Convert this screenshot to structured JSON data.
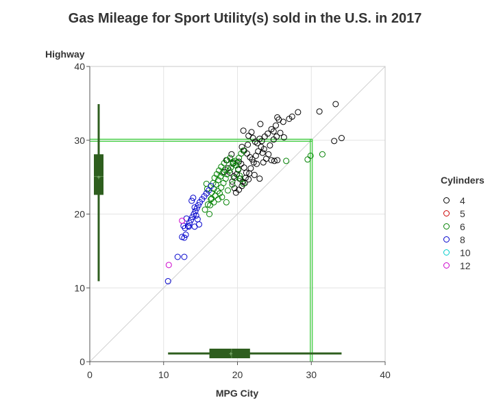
{
  "chart_data": {
    "type": "scatter",
    "title": "Gas Mileage for Sport Utility(s) sold in the U.S. in 2017",
    "xlabel": "MPG City",
    "ylabel": "Highway",
    "xlim": [
      0,
      40
    ],
    "ylim": [
      0,
      40
    ],
    "xticks": [
      "0",
      "10",
      "20",
      "30",
      "40"
    ],
    "yticks": [
      "0",
      "10",
      "20",
      "30",
      "40"
    ],
    "grid": true,
    "reference_line": "y = x",
    "average_lines": {
      "x": 30,
      "y": 30,
      "color": "#33cc33"
    },
    "legend": {
      "title": "Cylinders",
      "placement": "right"
    },
    "series": [
      {
        "name": "4",
        "color": "#000000",
        "points": [
          [
            20.8,
            31.3
          ],
          [
            21.5,
            30.6
          ],
          [
            22.1,
            30.3
          ],
          [
            22.4,
            29.8
          ],
          [
            23.0,
            30.2
          ],
          [
            23.3,
            29.9
          ],
          [
            23.7,
            30.5
          ],
          [
            24.1,
            30.9
          ],
          [
            24.6,
            31.5
          ],
          [
            25.2,
            32.0
          ],
          [
            25.6,
            32.8
          ],
          [
            26.2,
            32.5
          ],
          [
            27.0,
            32.9
          ],
          [
            27.4,
            33.2
          ],
          [
            28.2,
            33.8
          ],
          [
            31.1,
            33.9
          ],
          [
            33.3,
            34.9
          ],
          [
            34.1,
            30.3
          ],
          [
            33.1,
            29.9
          ],
          [
            25.4,
            33.1
          ],
          [
            24.9,
            31.2
          ],
          [
            23.1,
            32.2
          ],
          [
            21.9,
            31.1
          ],
          [
            20.6,
            29.1
          ],
          [
            20.9,
            28.6
          ],
          [
            21.3,
            28.2
          ],
          [
            21.7,
            27.7
          ],
          [
            22.0,
            27.4
          ],
          [
            22.5,
            27.9
          ],
          [
            22.8,
            28.5
          ],
          [
            23.2,
            29.1
          ],
          [
            23.6,
            28.8
          ],
          [
            24.2,
            28.1
          ],
          [
            24.6,
            27.3
          ],
          [
            25.0,
            27.2
          ],
          [
            25.4,
            27.3
          ],
          [
            21.8,
            26.2
          ],
          [
            21.6,
            25.5
          ],
          [
            21.1,
            24.9
          ],
          [
            20.7,
            24.4
          ],
          [
            20.3,
            24.8
          ],
          [
            19.9,
            25.4
          ],
          [
            19.5,
            25.1
          ],
          [
            19.3,
            24.4
          ],
          [
            19.6,
            23.5
          ],
          [
            19.8,
            22.9
          ],
          [
            20.2,
            23.3
          ],
          [
            20.6,
            23.8
          ],
          [
            21.0,
            24.2
          ],
          [
            21.5,
            24.7
          ],
          [
            21.2,
            25.6
          ],
          [
            20.9,
            26.3
          ],
          [
            20.5,
            26.8
          ],
          [
            20.2,
            27.1
          ],
          [
            22.3,
            25.3
          ],
          [
            22.6,
            26.8
          ],
          [
            23.0,
            24.8
          ],
          [
            23.5,
            27.0
          ],
          [
            23.9,
            27.5
          ],
          [
            24.4,
            29.3
          ],
          [
            24.9,
            30.1
          ],
          [
            25.3,
            30.5
          ],
          [
            25.8,
            31.0
          ],
          [
            26.3,
            30.4
          ],
          [
            19.4,
            26.9
          ],
          [
            19.0,
            25.6
          ],
          [
            18.7,
            26.2
          ],
          [
            18.5,
            27.3
          ],
          [
            18.2,
            25.7
          ],
          [
            19.2,
            28.1
          ],
          [
            22.7,
            29.6
          ],
          [
            23.4,
            28.3
          ],
          [
            21.4,
            29.4
          ],
          [
            20.1,
            26.0
          ],
          [
            22.2,
            27.0
          ]
        ]
      },
      {
        "name": "5",
        "color": "#cc0000",
        "points": []
      },
      {
        "name": "6",
        "color": "#008000",
        "points": [
          [
            15.6,
            20.6
          ],
          [
            16.0,
            21.3
          ],
          [
            16.2,
            20.0
          ],
          [
            16.5,
            22.1
          ],
          [
            16.8,
            21.6
          ],
          [
            17.0,
            22.5
          ],
          [
            17.3,
            23.1
          ],
          [
            17.6,
            22.8
          ],
          [
            17.8,
            23.6
          ],
          [
            18.1,
            24.2
          ],
          [
            18.4,
            24.8
          ],
          [
            18.6,
            25.4
          ],
          [
            18.9,
            25.9
          ],
          [
            19.1,
            26.3
          ],
          [
            19.4,
            26.8
          ],
          [
            19.7,
            27.2
          ],
          [
            20.0,
            27.0
          ],
          [
            20.2,
            27.6
          ],
          [
            20.5,
            28.2
          ],
          [
            20.8,
            28.6
          ],
          [
            18.3,
            26.0
          ],
          [
            18.0,
            25.6
          ],
          [
            17.7,
            25.1
          ],
          [
            17.4,
            24.6
          ],
          [
            17.1,
            24.0
          ],
          [
            16.8,
            23.4
          ],
          [
            16.5,
            22.9
          ],
          [
            16.7,
            24.2
          ],
          [
            16.9,
            24.9
          ],
          [
            17.2,
            25.4
          ],
          [
            17.5,
            25.9
          ],
          [
            17.8,
            26.4
          ],
          [
            18.2,
            26.9
          ],
          [
            18.6,
            27.3
          ],
          [
            19.0,
            27.6
          ],
          [
            19.4,
            27.1
          ],
          [
            19.8,
            26.6
          ],
          [
            20.1,
            26.1
          ],
          [
            20.4,
            24.8
          ],
          [
            20.8,
            24.1
          ],
          [
            16.4,
            22.0
          ],
          [
            17.9,
            22.3
          ],
          [
            18.7,
            23.2
          ],
          [
            19.3,
            24.0
          ],
          [
            15.8,
            24.1
          ],
          [
            15.9,
            23.4
          ],
          [
            16.3,
            21.2
          ],
          [
            26.6,
            27.2
          ],
          [
            29.5,
            27.4
          ],
          [
            29.9,
            27.9
          ],
          [
            31.5,
            28.1
          ],
          [
            17.4,
            22.0
          ],
          [
            18.5,
            21.6
          ],
          [
            19.6,
            24.9
          ],
          [
            20.3,
            25.2
          ]
        ]
      },
      {
        "name": "8",
        "color": "#0000cc",
        "points": [
          [
            10.6,
            10.9
          ],
          [
            11.9,
            14.2
          ],
          [
            12.8,
            14.2
          ],
          [
            12.5,
            16.9
          ],
          [
            12.8,
            16.8
          ],
          [
            13.0,
            17.2
          ],
          [
            12.9,
            18.1
          ],
          [
            13.3,
            18.4
          ],
          [
            13.5,
            18.8
          ],
          [
            13.7,
            19.2
          ],
          [
            13.9,
            19.6
          ],
          [
            14.1,
            20.0
          ],
          [
            14.3,
            20.4
          ],
          [
            14.5,
            20.8
          ],
          [
            14.7,
            21.2
          ],
          [
            14.9,
            21.6
          ],
          [
            15.2,
            22.0
          ],
          [
            15.5,
            22.4
          ],
          [
            15.8,
            22.8
          ],
          [
            16.1,
            23.2
          ],
          [
            16.4,
            23.8
          ],
          [
            13.8,
            21.8
          ],
          [
            14.0,
            22.2
          ],
          [
            14.2,
            20.9
          ],
          [
            14.4,
            19.8
          ],
          [
            14.6,
            19.3
          ],
          [
            14.8,
            18.6
          ],
          [
            13.4,
            18.3
          ],
          [
            13.1,
            19.4
          ],
          [
            12.7,
            18.4
          ],
          [
            14.2,
            18.3
          ]
        ]
      },
      {
        "name": "10",
        "color": "#00cccc",
        "points": []
      },
      {
        "name": "12",
        "color": "#cc00cc",
        "points": [
          [
            10.7,
            13.1
          ],
          [
            12.5,
            19.1
          ]
        ]
      }
    ],
    "box_x": {
      "min": 10.6,
      "q1": 16.2,
      "median": 19.2,
      "q3": 21.7,
      "max": 34.1,
      "mean": 19.1,
      "color": "#2e5e1e"
    },
    "box_y": {
      "min": 10.9,
      "q1": 22.6,
      "median": 25.1,
      "q3": 28.1,
      "max": 34.9,
      "mean": 25.0,
      "color": "#2e5e1e"
    }
  }
}
